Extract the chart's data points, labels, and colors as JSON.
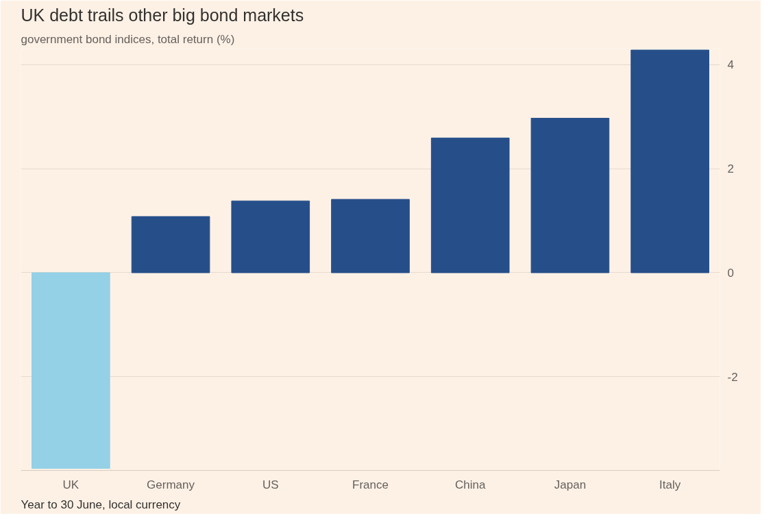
{
  "chart_data": {
    "type": "bar",
    "title": "UK debt trails other big bond markets",
    "subtitle": "government bond indices, total return (%)",
    "categories": [
      "UK",
      "Germany",
      "US",
      "France",
      "China",
      "Japan",
      "Italy"
    ],
    "values": [
      -3.76,
      1.08,
      1.38,
      1.41,
      2.59,
      2.97,
      4.28
    ],
    "colors": [
      "#94d0e6",
      "#264f8a",
      "#264f8a",
      "#264f8a",
      "#264f8a",
      "#264f8a",
      "#264f8a"
    ],
    "ylim": [
      -3.8,
      4.3
    ],
    "yticks": [
      -2,
      0,
      2,
      4
    ],
    "grid": "y",
    "annotations": [
      "Year to 30 June, local currency"
    ]
  }
}
